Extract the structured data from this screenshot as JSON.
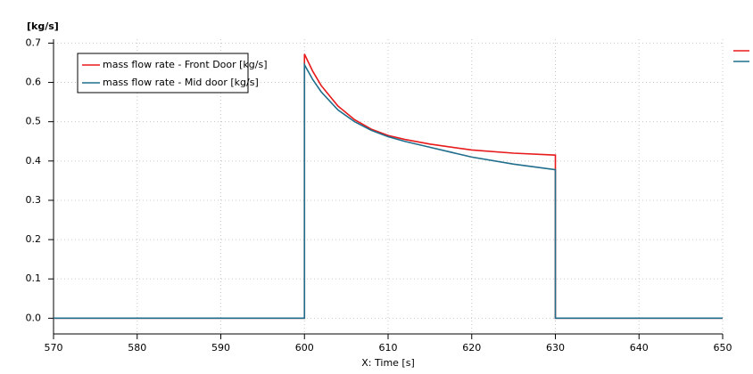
{
  "chart_data": {
    "type": "line",
    "y_label": "[kg/s]",
    "x_label": "X: Time [s]",
    "xlim": [
      570,
      650
    ],
    "xticks": [
      570,
      580,
      590,
      600,
      610,
      620,
      630,
      640,
      650
    ],
    "ylim": [
      -0.04,
      0.71
    ],
    "yticks": [
      {
        "value": 0,
        "label": "0.0"
      },
      0.1,
      0.2,
      0.3,
      0.4,
      0.5,
      0.6,
      0.7
    ],
    "grid": true,
    "legend": "top-left",
    "series": [
      {
        "name": "mass flow rate - Front Door [kg/s]",
        "color": "#e8191b",
        "x": [
          570,
          600,
          600,
          601,
          602,
          604,
          606,
          608,
          610,
          612,
          615,
          620,
          625,
          630,
          630,
          650
        ],
        "values": [
          0,
          0,
          0.672,
          0.628,
          0.592,
          0.54,
          0.505,
          0.481,
          0.465,
          0.455,
          0.443,
          0.428,
          0.42,
          0.415,
          0,
          0
        ]
      },
      {
        "name": "mass flow rate - Mid door [kg/s]",
        "color": "#1f6e8c",
        "x": [
          570,
          600,
          600,
          601,
          602,
          604,
          606,
          608,
          610,
          612,
          615,
          620,
          625,
          630,
          630,
          650
        ],
        "values": [
          0,
          0,
          0.645,
          0.607,
          0.576,
          0.53,
          0.5,
          0.478,
          0.462,
          0.45,
          0.435,
          0.41,
          0.392,
          0.378,
          0,
          0
        ]
      }
    ]
  }
}
